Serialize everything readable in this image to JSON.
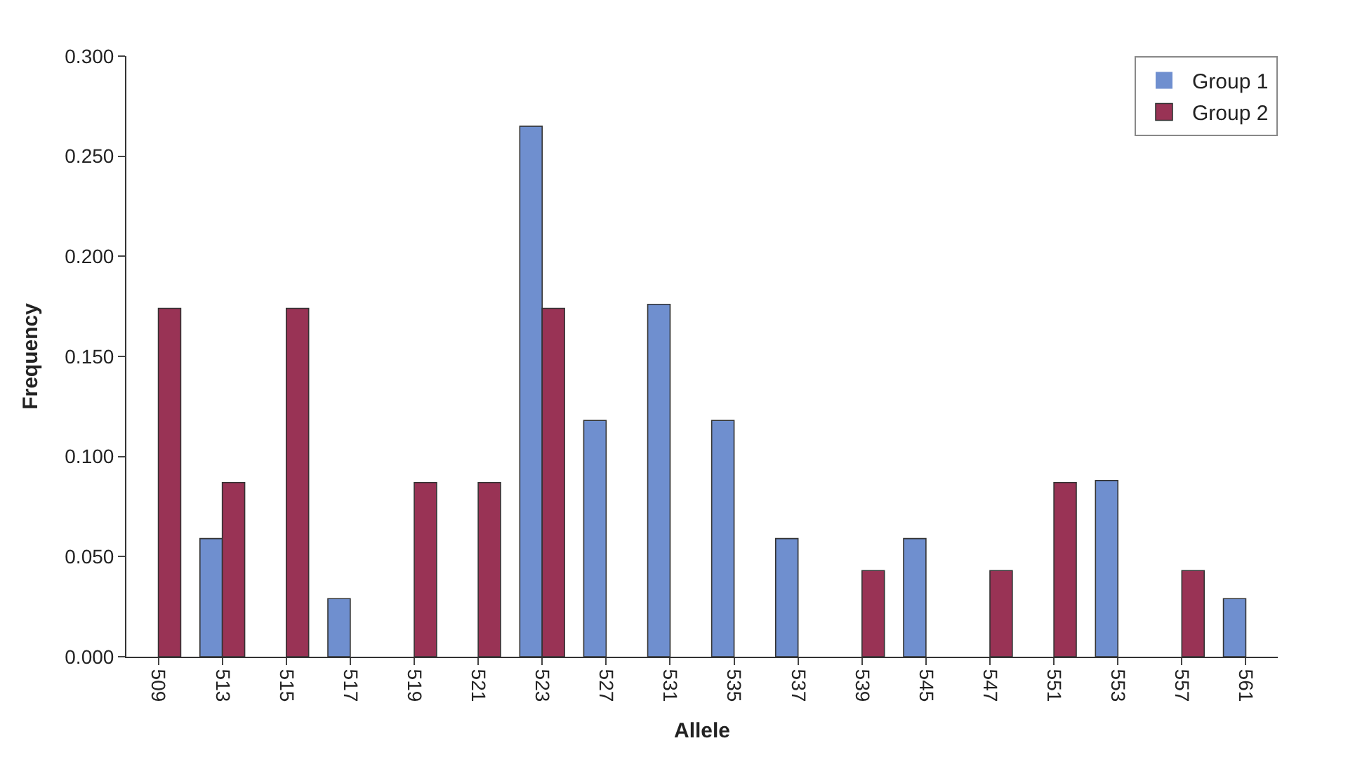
{
  "chart_data": {
    "type": "bar",
    "xlabel": "Allele",
    "ylabel": "Frequency",
    "categories": [
      "509",
      "513",
      "515",
      "517",
      "519",
      "521",
      "523",
      "527",
      "531",
      "535",
      "537",
      "539",
      "545",
      "547",
      "551",
      "553",
      "557",
      "561"
    ],
    "series": [
      {
        "name": "Group 1",
        "color": "#6f8fcf",
        "values": [
          0,
          0.059,
          0,
          0.029,
          0,
          0,
          0.265,
          0.118,
          0.176,
          0.118,
          0.059,
          0,
          0.059,
          0,
          0,
          0.088,
          0,
          0.029
        ]
      },
      {
        "name": "Group 2",
        "color": "#993355",
        "values": [
          0.174,
          0.087,
          0.174,
          0,
          0.087,
          0.087,
          0.174,
          0,
          0,
          0,
          0,
          0.043,
          0,
          0.043,
          0.087,
          0,
          0.043,
          0
        ]
      }
    ],
    "ylim": [
      0,
      0.3
    ],
    "yticks": [
      {
        "value": 0,
        "label": "0.000"
      },
      {
        "value": 0.05,
        "label": "0.050"
      },
      {
        "value": 0.1,
        "label": "0.100"
      },
      {
        "value": 0.15,
        "label": "0.150"
      },
      {
        "value": 0.2,
        "label": "0.200"
      },
      {
        "value": 0.25,
        "label": "0.250"
      },
      {
        "value": 0.3,
        "label": "0.300"
      }
    ],
    "grid": false,
    "legend": "top right"
  }
}
